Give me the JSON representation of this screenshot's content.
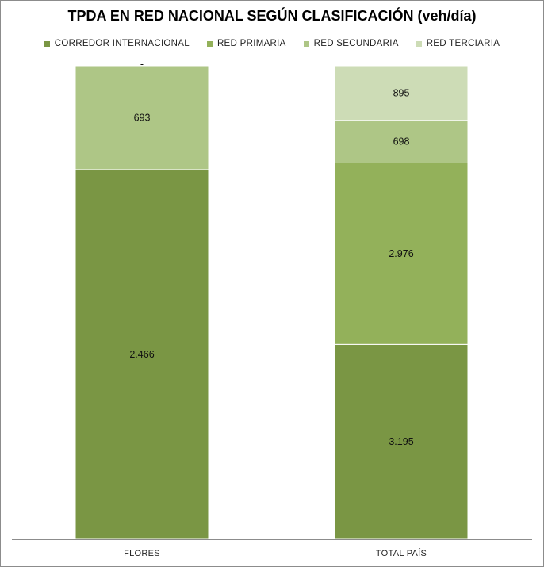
{
  "chart_data": {
    "type": "bar",
    "stacked": true,
    "title": "TPDA EN RED NACIONAL SEGÚN CLASIFICACIÓN (veh/día)",
    "categories": [
      "FLORES",
      "TOTAL PAÍS"
    ],
    "series": [
      {
        "name": "CORREDOR INTERNACIONAL",
        "color": "#7a9644",
        "values": [
          2466,
          3195
        ],
        "labels": [
          "2.466",
          "3.195"
        ]
      },
      {
        "name": "RED PRIMARIA",
        "color": "#93b15a",
        "values": [
          0,
          2976
        ],
        "labels": [
          "-",
          "2.976"
        ]
      },
      {
        "name": "RED SECUNDARIA",
        "color": "#aec686",
        "values": [
          693,
          698
        ],
        "labels": [
          "693",
          "698"
        ]
      },
      {
        "name": "RED TERCIARIA",
        "color": "#cddcb6",
        "values": [
          0,
          895
        ],
        "labels": [
          "-",
          "895"
        ]
      }
    ],
    "grid": false,
    "legend_position": "top"
  }
}
